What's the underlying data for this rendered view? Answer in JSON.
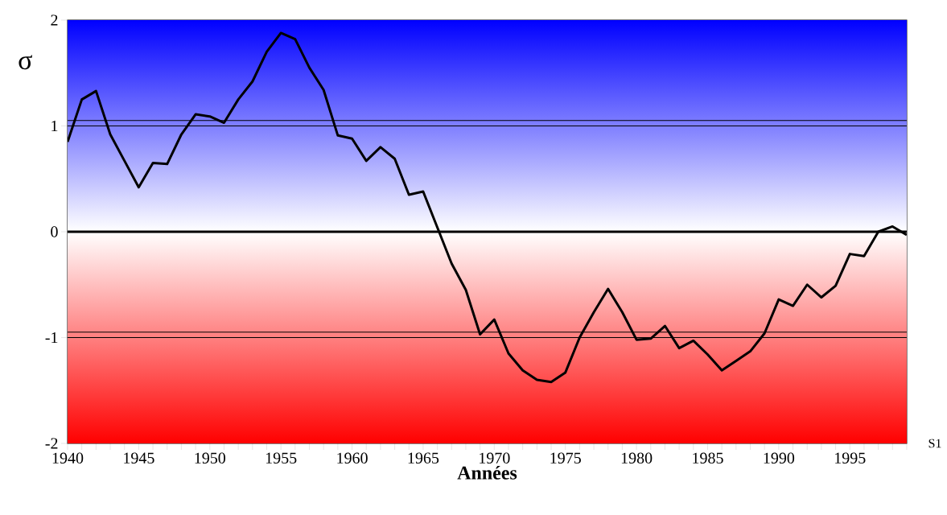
{
  "chart_data": {
    "type": "line",
    "xlabel": "Années",
    "ylabel": "σ",
    "x": [
      1940,
      1941,
      1942,
      1943,
      1944,
      1945,
      1946,
      1947,
      1948,
      1949,
      1950,
      1951,
      1952,
      1953,
      1954,
      1955,
      1956,
      1957,
      1958,
      1959,
      1960,
      1961,
      1962,
      1963,
      1964,
      1965,
      1966,
      1967,
      1968,
      1969,
      1970,
      1971,
      1972,
      1973,
      1974,
      1975,
      1976,
      1977,
      1978,
      1979,
      1980,
      1981,
      1982,
      1983,
      1984,
      1985,
      1986,
      1987,
      1988,
      1989,
      1990,
      1991,
      1992,
      1993,
      1994,
      1995,
      1996,
      1997,
      1998,
      1999
    ],
    "series": [
      {
        "color": "#000000",
        "values": [
          0.85,
          1.25,
          1.33,
          0.92,
          0.67,
          0.42,
          0.65,
          0.64,
          0.92,
          1.11,
          1.09,
          1.03,
          1.25,
          1.42,
          1.7,
          1.88,
          1.82,
          1.55,
          1.34,
          0.91,
          0.88,
          0.67,
          0.8,
          0.69,
          0.35,
          0.38,
          0.04,
          -0.3,
          -0.55,
          -0.97,
          -0.83,
          -1.15,
          -1.31,
          -1.4,
          -1.42,
          -1.33,
          -1.0,
          -0.76,
          -0.54,
          -0.76,
          -1.02,
          -1.01,
          -0.89,
          -1.1,
          -1.03,
          -1.16,
          -1.31,
          -1.22,
          -1.13,
          -0.96,
          -0.64,
          -0.7,
          -0.5,
          -0.62,
          -0.51,
          -0.21,
          -0.23,
          0.0,
          0.05,
          -0.03
        ]
      }
    ],
    "xlim": [
      1940,
      1999
    ],
    "ylim": [
      -2,
      2
    ],
    "xticks": [
      1940,
      {
        "value": 1941,
        "label": null
      },
      {
        "value": 1942,
        "label": null
      },
      {
        "value": 1943,
        "label": null
      },
      {
        "value": 1944,
        "label": null
      },
      1945,
      {
        "value": 1946,
        "label": null
      },
      {
        "value": 1947,
        "label": null
      },
      {
        "value": 1948,
        "label": null
      },
      {
        "value": 1949,
        "label": null
      },
      1950,
      {
        "value": 1951,
        "label": null
      },
      {
        "value": 1952,
        "label": null
      },
      {
        "value": 1953,
        "label": null
      },
      {
        "value": 1954,
        "label": null
      },
      1955,
      {
        "value": 1956,
        "label": null
      },
      {
        "value": 1957,
        "label": null
      },
      {
        "value": 1958,
        "label": null
      },
      {
        "value": 1959,
        "label": null
      },
      1960,
      {
        "value": 1961,
        "label": null
      },
      {
        "value": 1962,
        "label": null
      },
      {
        "value": 1963,
        "label": null
      },
      {
        "value": 1964,
        "label": null
      },
      1965,
      {
        "value": 1966,
        "label": null
      },
      {
        "value": 1967,
        "label": null
      },
      {
        "value": 1968,
        "label": null
      },
      {
        "value": 1969,
        "label": null
      },
      1970,
      {
        "value": 1971,
        "label": null
      },
      {
        "value": 1972,
        "label": null
      },
      {
        "value": 1973,
        "label": null
      },
      {
        "value": 1974,
        "label": null
      },
      1975,
      {
        "value": 1976,
        "label": null
      },
      {
        "value": 1977,
        "label": null
      },
      {
        "value": 1978,
        "label": null
      },
      {
        "value": 1979,
        "label": null
      },
      1980,
      {
        "value": 1981,
        "label": null
      },
      {
        "value": 1982,
        "label": null
      },
      {
        "value": 1983,
        "label": null
      },
      {
        "value": 1984,
        "label": null
      },
      1985,
      {
        "value": 1986,
        "label": null
      },
      {
        "value": 1987,
        "label": null
      },
      {
        "value": 1988,
        "label": null
      },
      {
        "value": 1989,
        "label": null
      },
      1990,
      {
        "value": 1991,
        "label": null
      },
      {
        "value": 1992,
        "label": null
      },
      {
        "value": 1993,
        "label": null
      },
      {
        "value": 1994,
        "label": null
      },
      1995,
      {
        "value": 1996,
        "label": null
      },
      {
        "value": 1997,
        "label": null
      },
      {
        "value": 1998,
        "label": null
      },
      {
        "value": 1999,
        "label": null
      }
    ],
    "yticks": [
      -2,
      -1,
      0,
      1,
      2
    ],
    "bands": [
      {
        "axis": "y",
        "from": 0,
        "to": 2,
        "color": "#0000ff"
      },
      {
        "axis": "y",
        "from": 0,
        "to": -2,
        "color": "#ff0000"
      }
    ],
    "ref_lines": [
      {
        "axis": "y",
        "value": 0
      },
      {
        "axis": "y",
        "value": 1.05
      },
      {
        "axis": "y",
        "value": 1.0
      },
      {
        "axis": "y",
        "value": -0.95
      },
      {
        "axis": "y",
        "value": -1.0
      }
    ],
    "annotations": [
      "S1"
    ]
  }
}
